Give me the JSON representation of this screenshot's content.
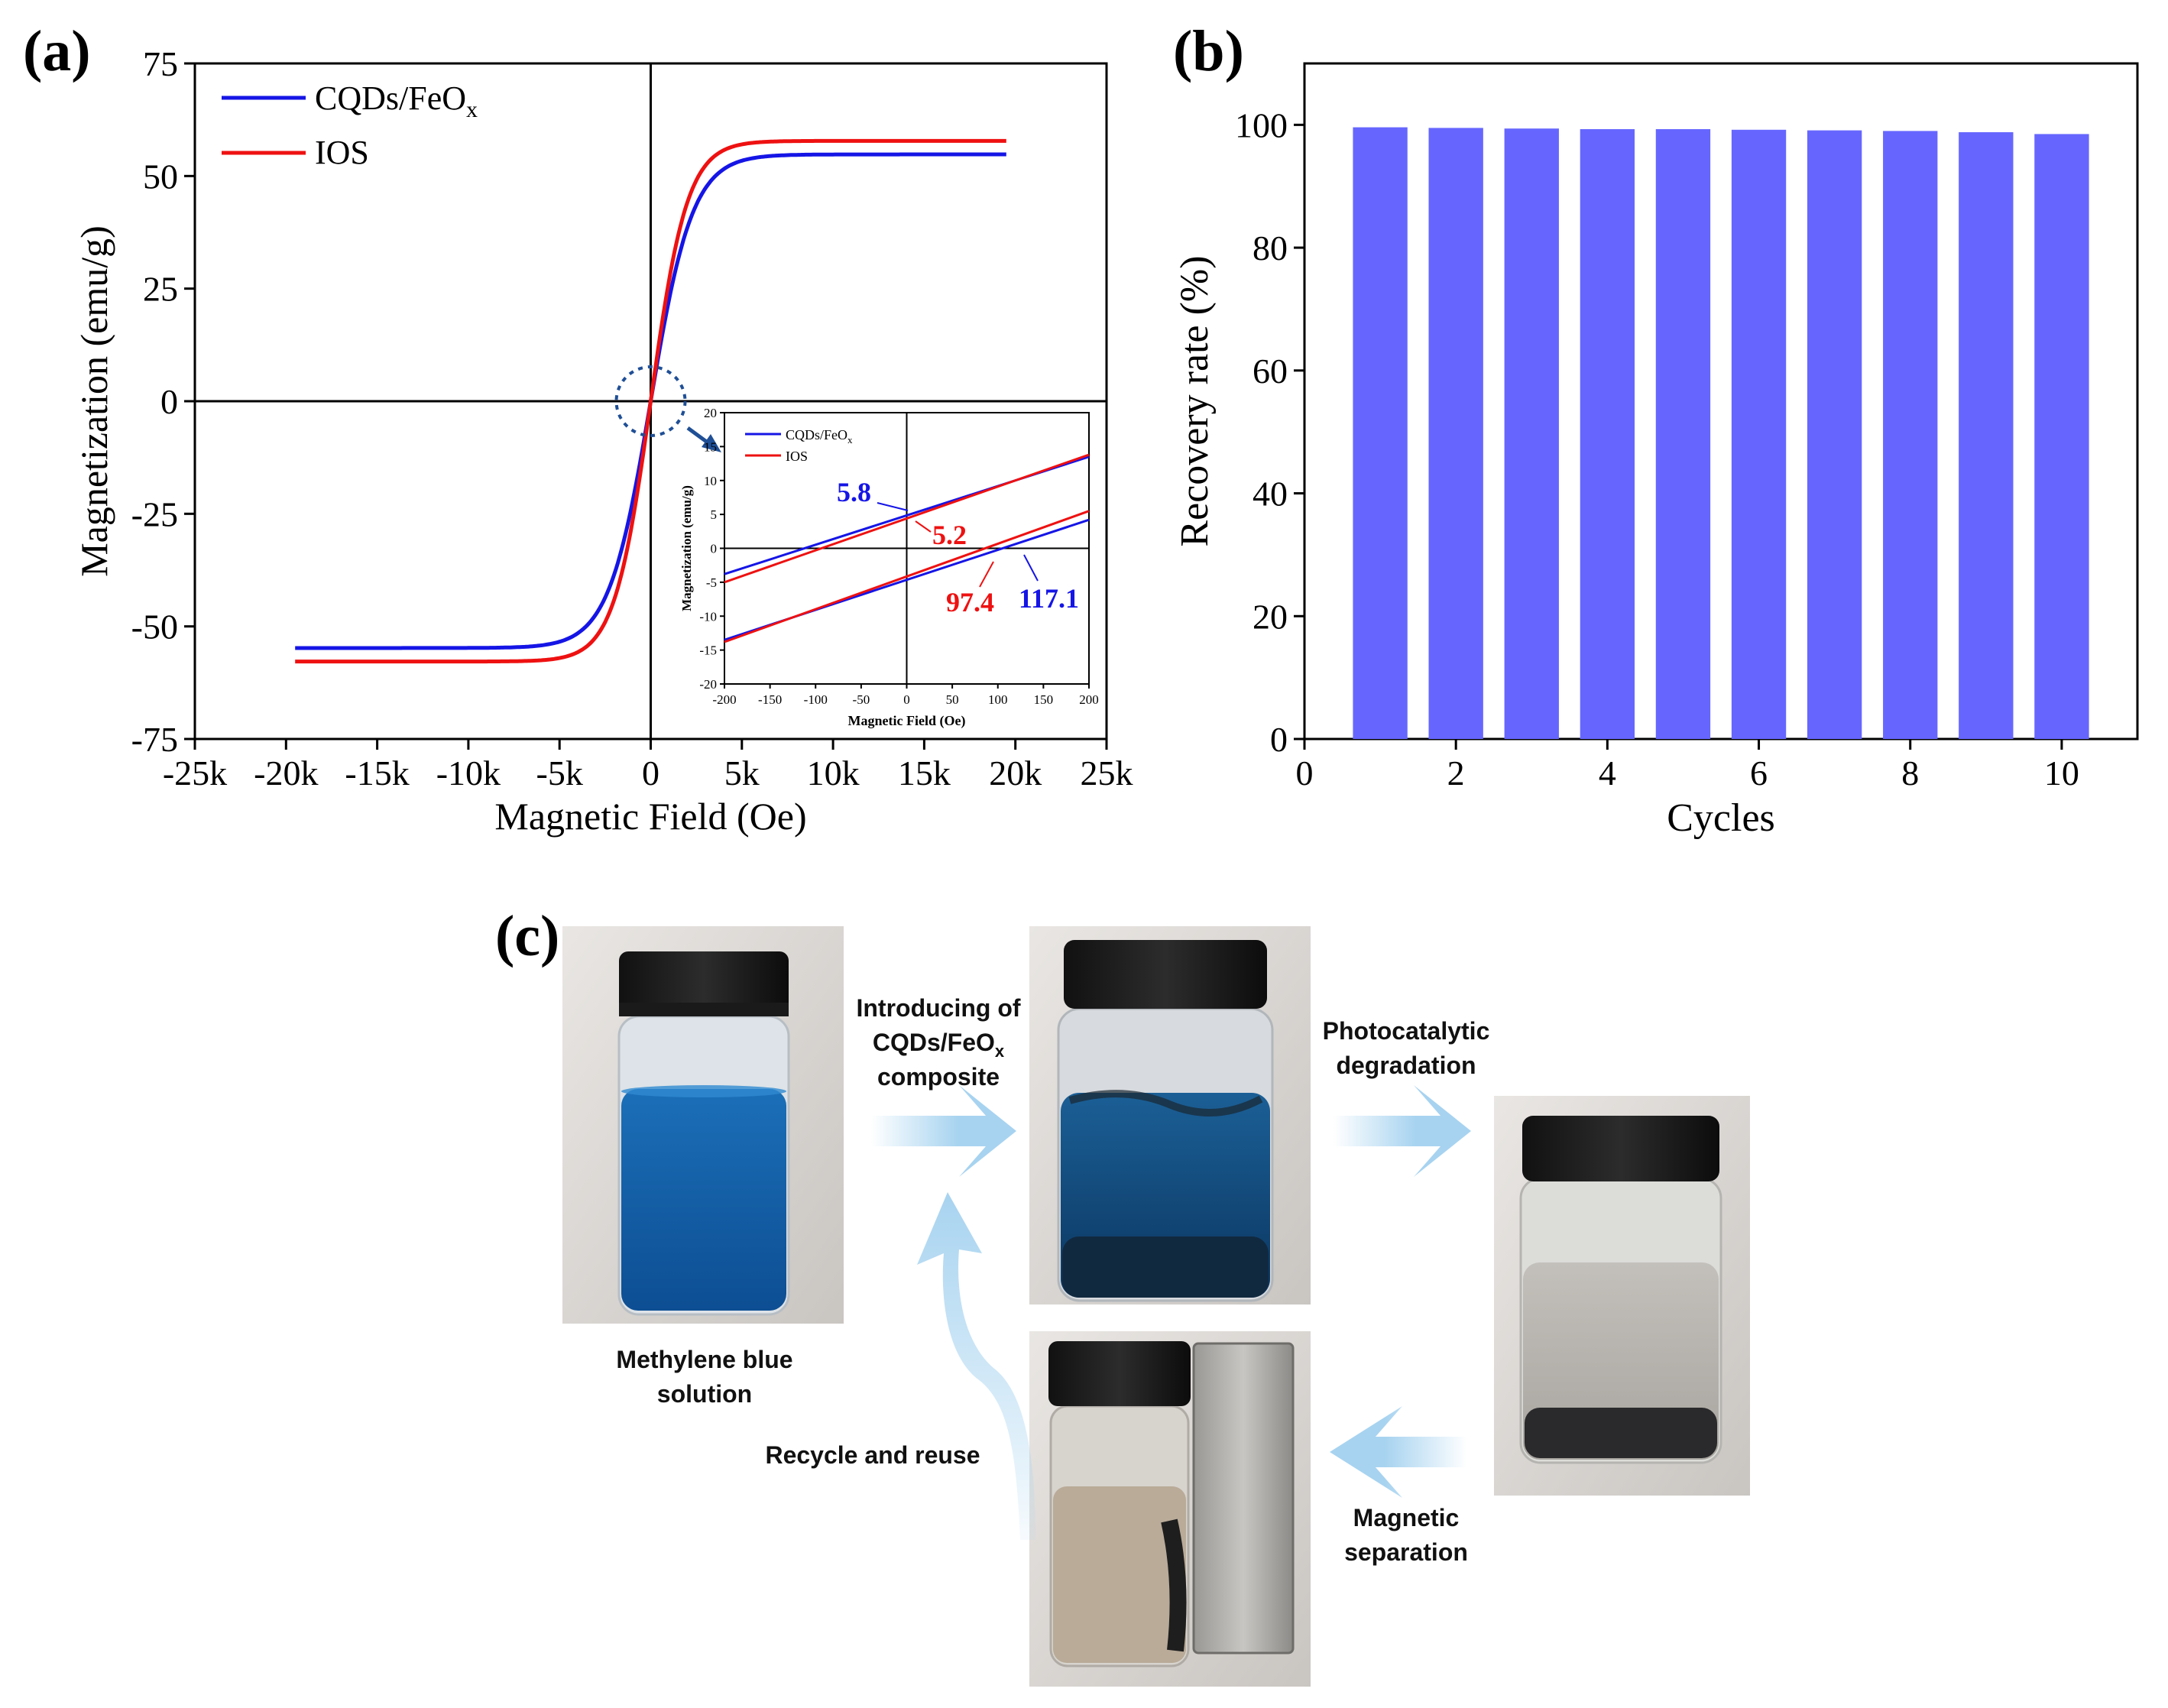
{
  "figure": {
    "panels": {
      "a": "(a)",
      "b": "(b)",
      "c": "(c)"
    },
    "colors": {
      "cqds": "#1515e6",
      "ios": "#ee1111",
      "bar": "#6666ff",
      "arrow": "#a7d3f0",
      "inset_arrow": "#1f4f96"
    }
  },
  "chart_data": [
    {
      "id": "a",
      "type": "line",
      "title": "",
      "xlabel": "Magnetic Field (Oe)",
      "ylabel": "Magnetization (emu/g)",
      "xlim": [
        -25000,
        25000
      ],
      "ylim": [
        -75,
        75
      ],
      "xticks": [
        -25000,
        -20000,
        -15000,
        -10000,
        -5000,
        0,
        5000,
        10000,
        15000,
        20000,
        25000
      ],
      "xtick_labels": [
        "-25k",
        "-20k",
        "-15k",
        "-10k",
        "-5k",
        "0",
        "5k",
        "10k",
        "15k",
        "20k",
        "25k"
      ],
      "yticks": [
        -75,
        -50,
        -25,
        0,
        25,
        50,
        75
      ],
      "ytick_labels": [
        "-75",
        "-50",
        "-25",
        "0",
        "25",
        "50",
        "75"
      ],
      "legend_position": "top-left",
      "series": [
        {
          "name": "CQDs/FeOx",
          "name_main": "CQDs/FeO",
          "name_sub": "x",
          "Ms": 54.8,
          "xmin": -19500,
          "xmax": 19500
        },
        {
          "name": "IOS",
          "Ms": 57.8,
          "xmin": -19500,
          "xmax": 19500
        }
      ],
      "inset": {
        "xlabel": "Magnetic Field (Oe)",
        "ylabel": "Magnetization (emu/g)",
        "xlim": [
          -200,
          200
        ],
        "ylim": [
          -20,
          20
        ],
        "xticks": [
          -200,
          -150,
          -100,
          -50,
          0,
          50,
          100,
          150,
          200
        ],
        "xtick_labels": [
          "-200",
          "-150",
          "-100",
          "-50",
          "0",
          "50",
          "100",
          "150",
          "200"
        ],
        "yticks": [
          -20,
          -15,
          -10,
          -5,
          0,
          5,
          10,
          15,
          20
        ],
        "ytick_labels": [
          "-20",
          "-15",
          "-10",
          "-5",
          "0",
          "5",
          "10",
          "15",
          "20"
        ],
        "legend": [
          "CQDs/FeOx",
          "IOS"
        ],
        "series": [
          {
            "name": "CQDs/FeOx",
            "upper": [
              [
                -200,
                -3.8
              ],
              [
                200,
                13.5
              ]
            ],
            "lower": [
              [
                -200,
                -13.5
              ],
              [
                200,
                4.2
              ]
            ]
          },
          {
            "name": "IOS",
            "upper": [
              [
                -200,
                -5.0
              ],
              [
                200,
                13.8
              ]
            ],
            "lower": [
              [
                -200,
                -13.8
              ],
              [
                200,
                5.5
              ]
            ]
          }
        ],
        "annotations": [
          {
            "text": "5.8",
            "series": "CQDs/FeOx",
            "value": 5.8
          },
          {
            "text": "5.2",
            "series": "IOS",
            "value": 5.2
          },
          {
            "text": "97.4",
            "series": "IOS",
            "value": 97.4
          },
          {
            "text": "117.1",
            "series": "CQDs/FeOx",
            "value": 117.1
          }
        ]
      }
    },
    {
      "id": "b",
      "type": "bar",
      "title": "",
      "xlabel": "Cycles",
      "ylabel": "Recovery rate (%)",
      "xlim": [
        0,
        11
      ],
      "ylim": [
        0,
        110
      ],
      "xticks": [
        0,
        2,
        4,
        6,
        8,
        10
      ],
      "xtick_labels": [
        "0",
        "2",
        "4",
        "6",
        "8",
        "10"
      ],
      "yticks": [
        0,
        20,
        40,
        60,
        80,
        100
      ],
      "ytick_labels": [
        "0",
        "20",
        "40",
        "60",
        "80",
        "100"
      ],
      "categories": [
        1,
        2,
        3,
        4,
        5,
        6,
        7,
        8,
        9,
        10
      ],
      "values": [
        99.6,
        99.5,
        99.4,
        99.3,
        99.3,
        99.2,
        99.1,
        99.0,
        98.8,
        98.5
      ]
    }
  ],
  "diagram": {
    "steps": {
      "mb_solution_line1": "Methylene blue",
      "mb_solution_line2": "solution",
      "introducing_line1": "Introducing of",
      "introducing_line2_main": "CQDs/FeO",
      "introducing_line2_sub": "x",
      "introducing_line3": "composite",
      "photocatalytic_line1": "Photocatalytic",
      "photocatalytic_line2": "degradation",
      "magnetic_line1": "Magnetic",
      "magnetic_line2": "separation",
      "recycle": "Recycle and reuse"
    }
  }
}
